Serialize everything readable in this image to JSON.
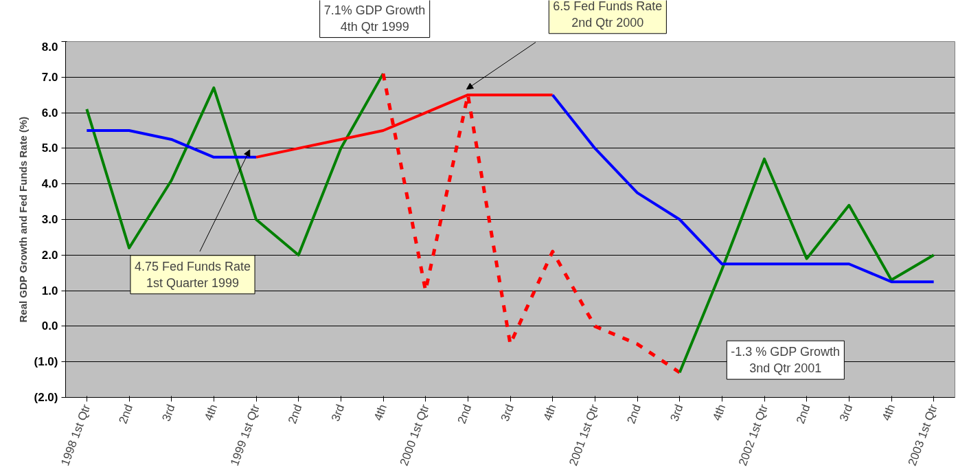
{
  "chart_data": {
    "type": "line",
    "ylabel": "Real GDP Growth and Fed Funds Rate (%)",
    "categories": [
      "1998 1st Qtr",
      "2nd",
      "3rd",
      "4th",
      "1999 1st Qtr",
      "2nd",
      "3rd",
      "4th",
      "2000 1st Qtr",
      "2nd",
      "3rd",
      "4th",
      "2001 1st Qtr",
      "2nd",
      "3rd",
      "4th",
      "2002 1st Qtr",
      "2nd",
      "3rd",
      "4th",
      "2003 1st Qtr"
    ],
    "series": [
      {
        "color": "#008000",
        "line_style": "solid",
        "values": [
          6.1,
          2.2,
          4.1,
          6.7,
          3.0,
          2.0,
          5.0,
          7.1,
          null,
          null,
          null,
          null,
          null,
          null,
          null,
          null,
          null,
          null,
          null,
          null,
          null
        ]
      },
      {
        "color": "#ff0000",
        "line_style": "dashed",
        "values": [
          null,
          null,
          null,
          null,
          null,
          null,
          null,
          7.1,
          1.0,
          6.5,
          -0.5,
          2.1,
          0.0,
          -0.5,
          -1.3,
          null,
          null,
          null,
          null,
          null,
          null
        ]
      },
      {
        "color": "#008000",
        "line_style": "solid",
        "values": [
          null,
          null,
          null,
          null,
          null,
          null,
          null,
          null,
          null,
          null,
          null,
          null,
          null,
          null,
          -1.3,
          1.6,
          4.7,
          1.9,
          3.4,
          1.3,
          2.0
        ]
      },
      {
        "color": "#0000ff",
        "line_style": "solid",
        "values": [
          5.5,
          5.5,
          5.25,
          4.75,
          4.75,
          null,
          null,
          null,
          null,
          null,
          null,
          null,
          null,
          null,
          null,
          null,
          null,
          null,
          null,
          null,
          null
        ]
      },
      {
        "color": "#ff0000",
        "line_style": "solid",
        "values": [
          null,
          null,
          null,
          null,
          4.75,
          5.0,
          5.25,
          5.5,
          6.0,
          6.5,
          6.5,
          6.5,
          null,
          null,
          null,
          null,
          null,
          null,
          null,
          null,
          null
        ]
      },
      {
        "color": "#0000ff",
        "line_style": "solid",
        "values": [
          null,
          null,
          null,
          null,
          null,
          null,
          null,
          null,
          null,
          null,
          null,
          6.5,
          5.0,
          3.75,
          3.0,
          1.75,
          1.75,
          1.75,
          1.75,
          1.25,
          1.25
        ]
      }
    ],
    "ylim": [
      -2,
      8
    ],
    "yticks": [
      {
        "value": -2,
        "label": "(2.0)"
      },
      {
        "value": -1,
        "label": "(1.0)"
      },
      {
        "value": 0,
        "label": "0.0"
      },
      {
        "value": 1,
        "label": "1.0"
      },
      {
        "value": 2,
        "label": "2.0"
      },
      {
        "value": 3,
        "label": "3.0"
      },
      {
        "value": 4,
        "label": "4.0"
      },
      {
        "value": 5,
        "label": "5.0"
      },
      {
        "value": 6,
        "label": "6.0"
      },
      {
        "value": 7,
        "label": "7.0"
      },
      {
        "value": 8,
        "label": "8.0"
      }
    ],
    "grid": "y",
    "marker": "none",
    "annotations": [
      "7.1% GDP Growth\n4th Qtr 1999",
      "6.5 Fed Funds Rate\n2nd Qtr 2000",
      "4.75 Fed Funds Rate\n1st Quarter 1999",
      "-1.3 % GDP Growth\n3nd Qtr 2001"
    ]
  }
}
